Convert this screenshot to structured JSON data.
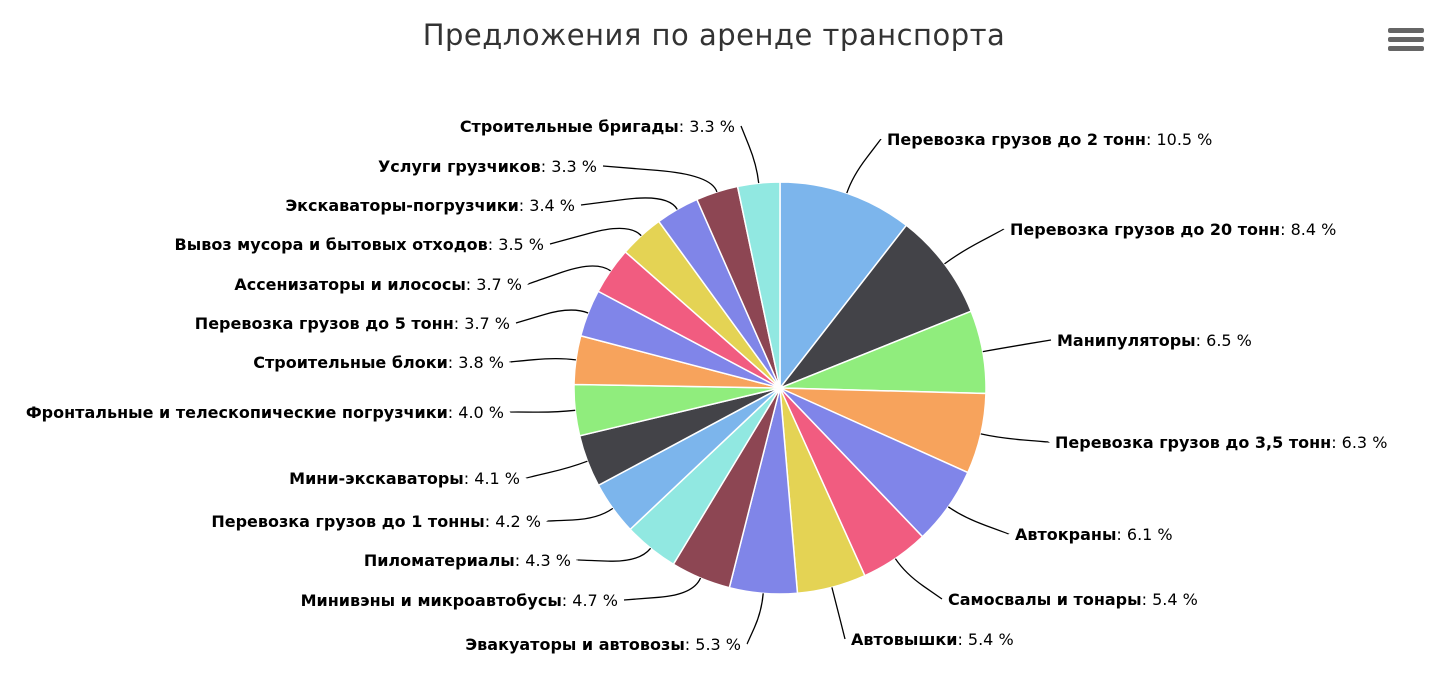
{
  "chart_data": {
    "type": "pie",
    "title": "Предложения по аренде транспорта",
    "slices": [
      {
        "name": "Перевозка грузов до 2 тонн",
        "value": 10.5,
        "label": "10.5 %",
        "color": "#7cb5ec"
      },
      {
        "name": "Перевозка грузов до 20 тонн",
        "value": 8.4,
        "label": "8.4 %",
        "color": "#434348"
      },
      {
        "name": "Манипуляторы",
        "value": 6.5,
        "label": "6.5 %",
        "color": "#90ed7d"
      },
      {
        "name": "Перевозка грузов до 3,5 тонн",
        "value": 6.3,
        "label": "6.3 %",
        "color": "#f7a35c"
      },
      {
        "name": "Автокраны",
        "value": 6.1,
        "label": "6.1 %",
        "color": "#8085e9"
      },
      {
        "name": "Самосвалы и тонары",
        "value": 5.4,
        "label": "5.4 %",
        "color": "#f15c80"
      },
      {
        "name": "Автовышки",
        "value": 5.4,
        "label": "5.4 %",
        "color": "#e4d354"
      },
      {
        "name": "Эвакуаторы и автовозы",
        "value": 5.3,
        "label": "5.3 %",
        "color": "#8085e8"
      },
      {
        "name": "Минивэны и микроавтобусы",
        "value": 4.7,
        "label": "4.7 %",
        "color": "#8d4653"
      },
      {
        "name": "Пиломатериалы",
        "value": 4.3,
        "label": "4.3 %",
        "color": "#91e8e1"
      },
      {
        "name": "Перевозка грузов до 1 тонны",
        "value": 4.2,
        "label": "4.2 %",
        "color": "#7cb5ec"
      },
      {
        "name": "Мини-экскаваторы",
        "value": 4.1,
        "label": "4.1 %",
        "color": "#434348"
      },
      {
        "name": "Фронтальные и телескопические погрузчики",
        "value": 4.0,
        "label": "4.0 %",
        "color": "#90ed7d"
      },
      {
        "name": "Строительные блоки",
        "value": 3.8,
        "label": "3.8 %",
        "color": "#f7a35c"
      },
      {
        "name": "Перевозка грузов до 5 тонн",
        "value": 3.7,
        "label": "3.7 %",
        "color": "#8085e9"
      },
      {
        "name": "Ассенизаторы и илососы",
        "value": 3.7,
        "label": "3.7 %",
        "color": "#f15c80"
      },
      {
        "name": "Вывоз мусора и бытовых отходов",
        "value": 3.5,
        "label": "3.5 %",
        "color": "#e4d354"
      },
      {
        "name": "Экскаваторы-погрузчики",
        "value": 3.4,
        "label": "3.4 %",
        "color": "#8085e8"
      },
      {
        "name": "Услуги грузчиков",
        "value": 3.3,
        "label": "3.3 %",
        "color": "#8d4653"
      },
      {
        "name": "Строительные бригады",
        "value": 3.3,
        "label": "3.3 %",
        "color": "#91e8e1"
      }
    ]
  },
  "toolbar": {
    "menu_icon": "hamburger-menu-icon"
  }
}
